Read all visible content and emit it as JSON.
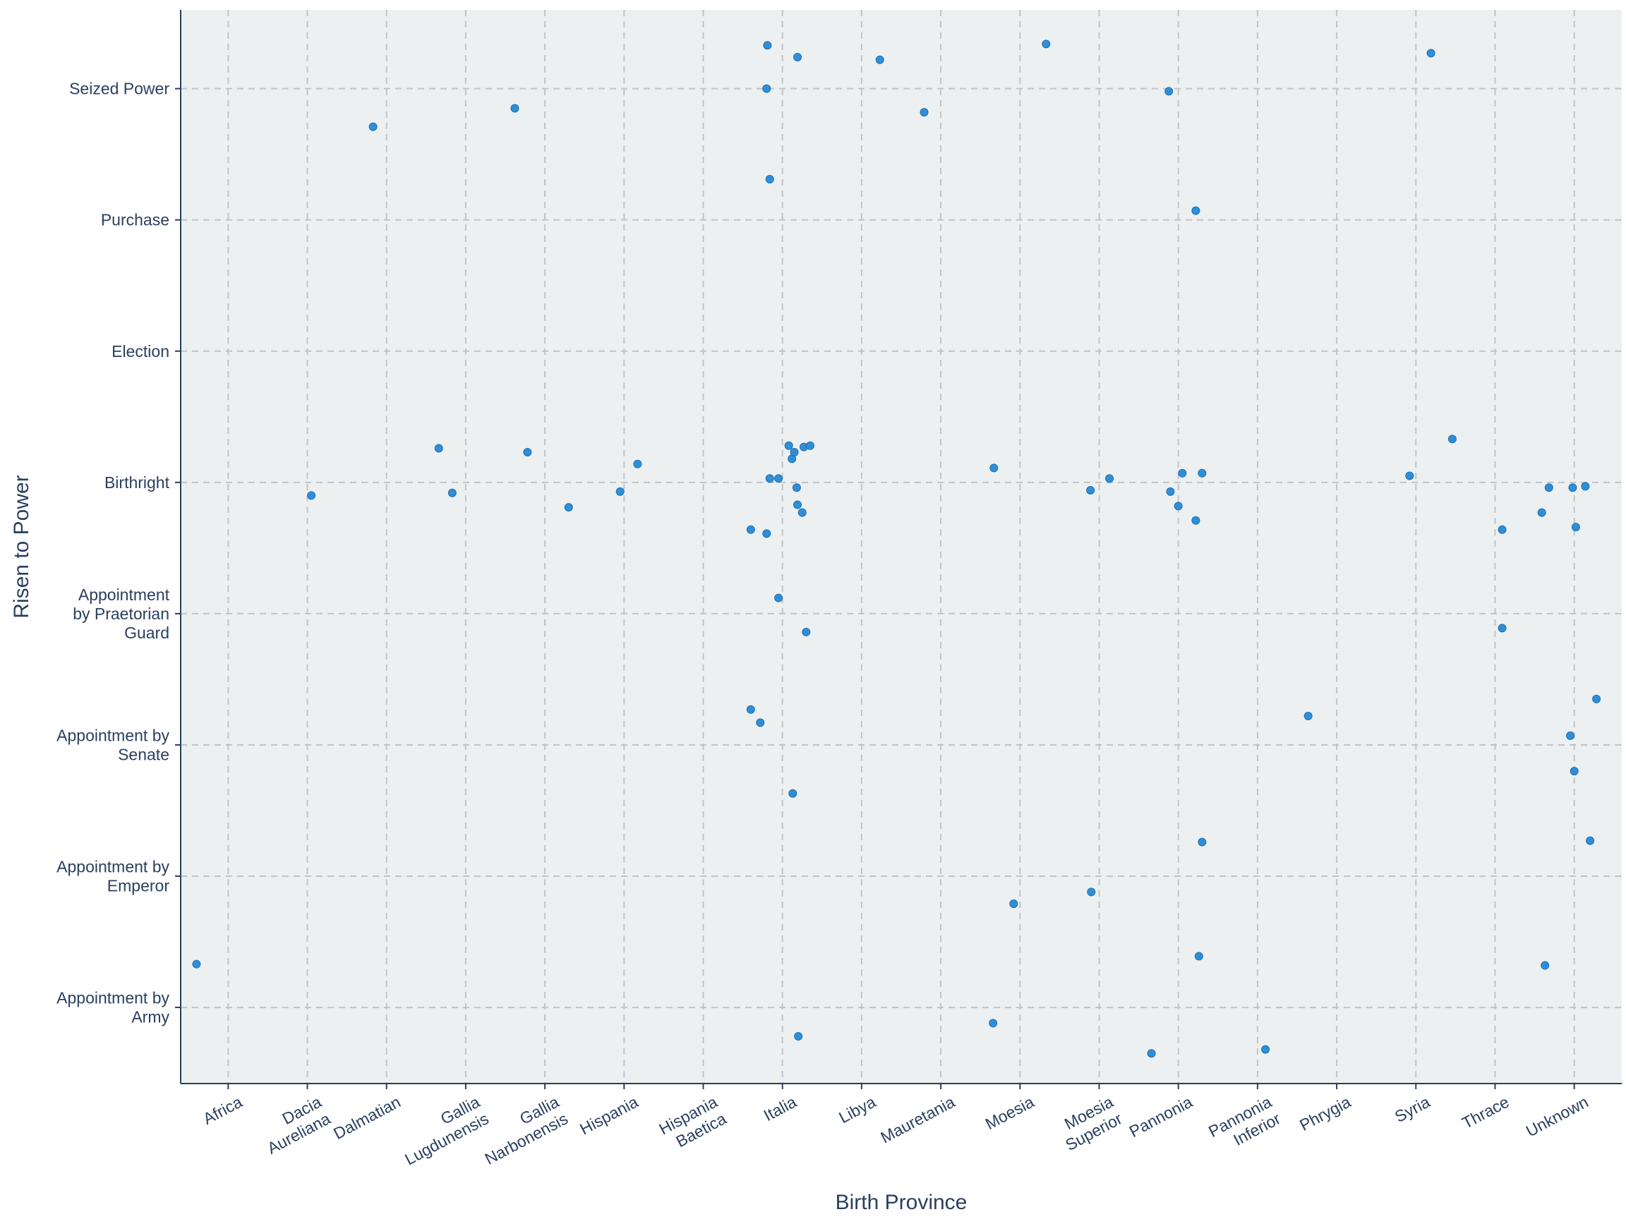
{
  "chart_data": {
    "type": "scatter",
    "title": "",
    "xlabel": "Birth Province",
    "ylabel": "Risen to Power",
    "grid": true,
    "legend": "none",
    "colors": {
      "plot_bg": "#ecf0f1",
      "marker": "#2e8fd8",
      "text": "#2a3f5f",
      "grid": "#c0c4c8"
    },
    "categories_x": [
      "Africa",
      "Dacia Aureliana",
      "Dalmatian",
      "Gallia Lugdunensis",
      "Gallia Narbonensis",
      "Hispania",
      "Hispania Baetica",
      "Italia",
      "Libya",
      "Mauretania",
      "Moesia",
      "Moesia Superior",
      "Pannonia",
      "Pannonia Inferior",
      "Phrygia",
      "Syria",
      "Thrace",
      "Unknown"
    ],
    "x_tick_lines": [
      [
        "Africa"
      ],
      [
        "Dacia",
        "Aureliana"
      ],
      [
        "Dalmatian"
      ],
      [
        "Gallia",
        "Lugdunensis"
      ],
      [
        "Gallia",
        "Narbonensis"
      ],
      [
        "Hispania"
      ],
      [
        "Hispania",
        "Baetica"
      ],
      [
        "Italia"
      ],
      [
        "Libya"
      ],
      [
        "Mauretania"
      ],
      [
        "Moesia"
      ],
      [
        "Moesia",
        "Superior"
      ],
      [
        "Pannonia"
      ],
      [
        "Pannonia",
        "Inferior"
      ],
      [
        "Phrygia"
      ],
      [
        "Syria"
      ],
      [
        "Thrace"
      ],
      [
        "Unknown"
      ]
    ],
    "categories_y": [
      "Appointment by Army",
      "Appointment by Emperor",
      "Appointment by Senate",
      "Appointment by Praetorian Guard",
      "Birthright",
      "Election",
      "Purchase",
      "Seized Power"
    ],
    "y_tick_lines": [
      [
        "Appointment by",
        "Army"
      ],
      [
        "Appointment by",
        "Emperor"
      ],
      [
        "Appointment by",
        "Senate"
      ],
      [
        "Appointment",
        "by Praetorian",
        "Guard"
      ],
      [
        "Birthright"
      ],
      [
        "Election"
      ],
      [
        "Purchase"
      ],
      [
        "Seized Power"
      ]
    ],
    "xlim": [
      -0.6,
      17.6
    ],
    "ylim": [
      -0.58,
      7.6
    ],
    "points": [
      {
        "x": -0.4,
        "y": 0.33
      },
      {
        "x": 1.05,
        "y": 3.9
      },
      {
        "x": 1.83,
        "y": 6.71
      },
      {
        "x": 2.66,
        "y": 4.26
      },
      {
        "x": 2.83,
        "y": 3.92
      },
      {
        "x": 3.62,
        "y": 6.85
      },
      {
        "x": 3.78,
        "y": 4.23
      },
      {
        "x": 4.3,
        "y": 3.81
      },
      {
        "x": 4.95,
        "y": 3.93
      },
      {
        "x": 5.17,
        "y": 4.14
      },
      {
        "x": 6.6,
        "y": 3.64
      },
      {
        "x": 6.6,
        "y": 2.27
      },
      {
        "x": 6.72,
        "y": 2.17
      },
      {
        "x": 6.81,
        "y": 7.33
      },
      {
        "x": 6.8,
        "y": 7.0
      },
      {
        "x": 6.84,
        "y": 6.31
      },
      {
        "x": 6.8,
        "y": 3.61
      },
      {
        "x": 6.84,
        "y": 4.03
      },
      {
        "x": 6.95,
        "y": 4.03
      },
      {
        "x": 6.95,
        "y": 3.12
      },
      {
        "x": 7.08,
        "y": 4.28
      },
      {
        "x": 7.12,
        "y": 4.18
      },
      {
        "x": 7.15,
        "y": 4.23
      },
      {
        "x": 7.18,
        "y": 3.96
      },
      {
        "x": 7.19,
        "y": 3.83
      },
      {
        "x": 7.13,
        "y": 1.63
      },
      {
        "x": 7.19,
        "y": 7.24
      },
      {
        "x": 7.25,
        "y": 3.77
      },
      {
        "x": 7.27,
        "y": 4.27
      },
      {
        "x": 7.3,
        "y": 2.86
      },
      {
        "x": 7.35,
        "y": 4.28
      },
      {
        "x": 7.2,
        "y": -0.22
      },
      {
        "x": 8.23,
        "y": 7.22
      },
      {
        "x": 8.79,
        "y": 6.82
      },
      {
        "x": 9.67,
        "y": 4.11
      },
      {
        "x": 9.92,
        "y": 0.79
      },
      {
        "x": 9.66,
        "y": -0.12
      },
      {
        "x": 10.33,
        "y": 7.34
      },
      {
        "x": 10.89,
        "y": 3.94
      },
      {
        "x": 10.9,
        "y": 0.88
      },
      {
        "x": 11.13,
        "y": 4.03
      },
      {
        "x": 11.66,
        "y": -0.35
      },
      {
        "x": 11.88,
        "y": 6.98
      },
      {
        "x": 11.9,
        "y": 3.93
      },
      {
        "x": 12.0,
        "y": 3.82
      },
      {
        "x": 12.05,
        "y": 4.07
      },
      {
        "x": 12.22,
        "y": 6.07
      },
      {
        "x": 12.22,
        "y": 3.71
      },
      {
        "x": 12.3,
        "y": 4.07
      },
      {
        "x": 12.3,
        "y": 1.26
      },
      {
        "x": 12.26,
        "y": 0.39
      },
      {
        "x": 13.1,
        "y": -0.32
      },
      {
        "x": 13.64,
        "y": 2.22
      },
      {
        "x": 14.92,
        "y": 4.05
      },
      {
        "x": 15.19,
        "y": 7.27
      },
      {
        "x": 15.46,
        "y": 4.33
      },
      {
        "x": 16.09,
        "y": 3.64
      },
      {
        "x": 16.09,
        "y": 2.89
      },
      {
        "x": 16.59,
        "y": 3.77
      },
      {
        "x": 16.63,
        "y": 0.32
      },
      {
        "x": 16.68,
        "y": 3.96
      },
      {
        "x": 16.95,
        "y": 2.07
      },
      {
        "x": 16.98,
        "y": 3.96
      },
      {
        "x": 17.0,
        "y": 1.8
      },
      {
        "x": 17.02,
        "y": 3.66
      },
      {
        "x": 17.14,
        "y": 3.97
      },
      {
        "x": 17.2,
        "y": 1.27
      },
      {
        "x": 17.28,
        "y": 2.35
      }
    ]
  }
}
